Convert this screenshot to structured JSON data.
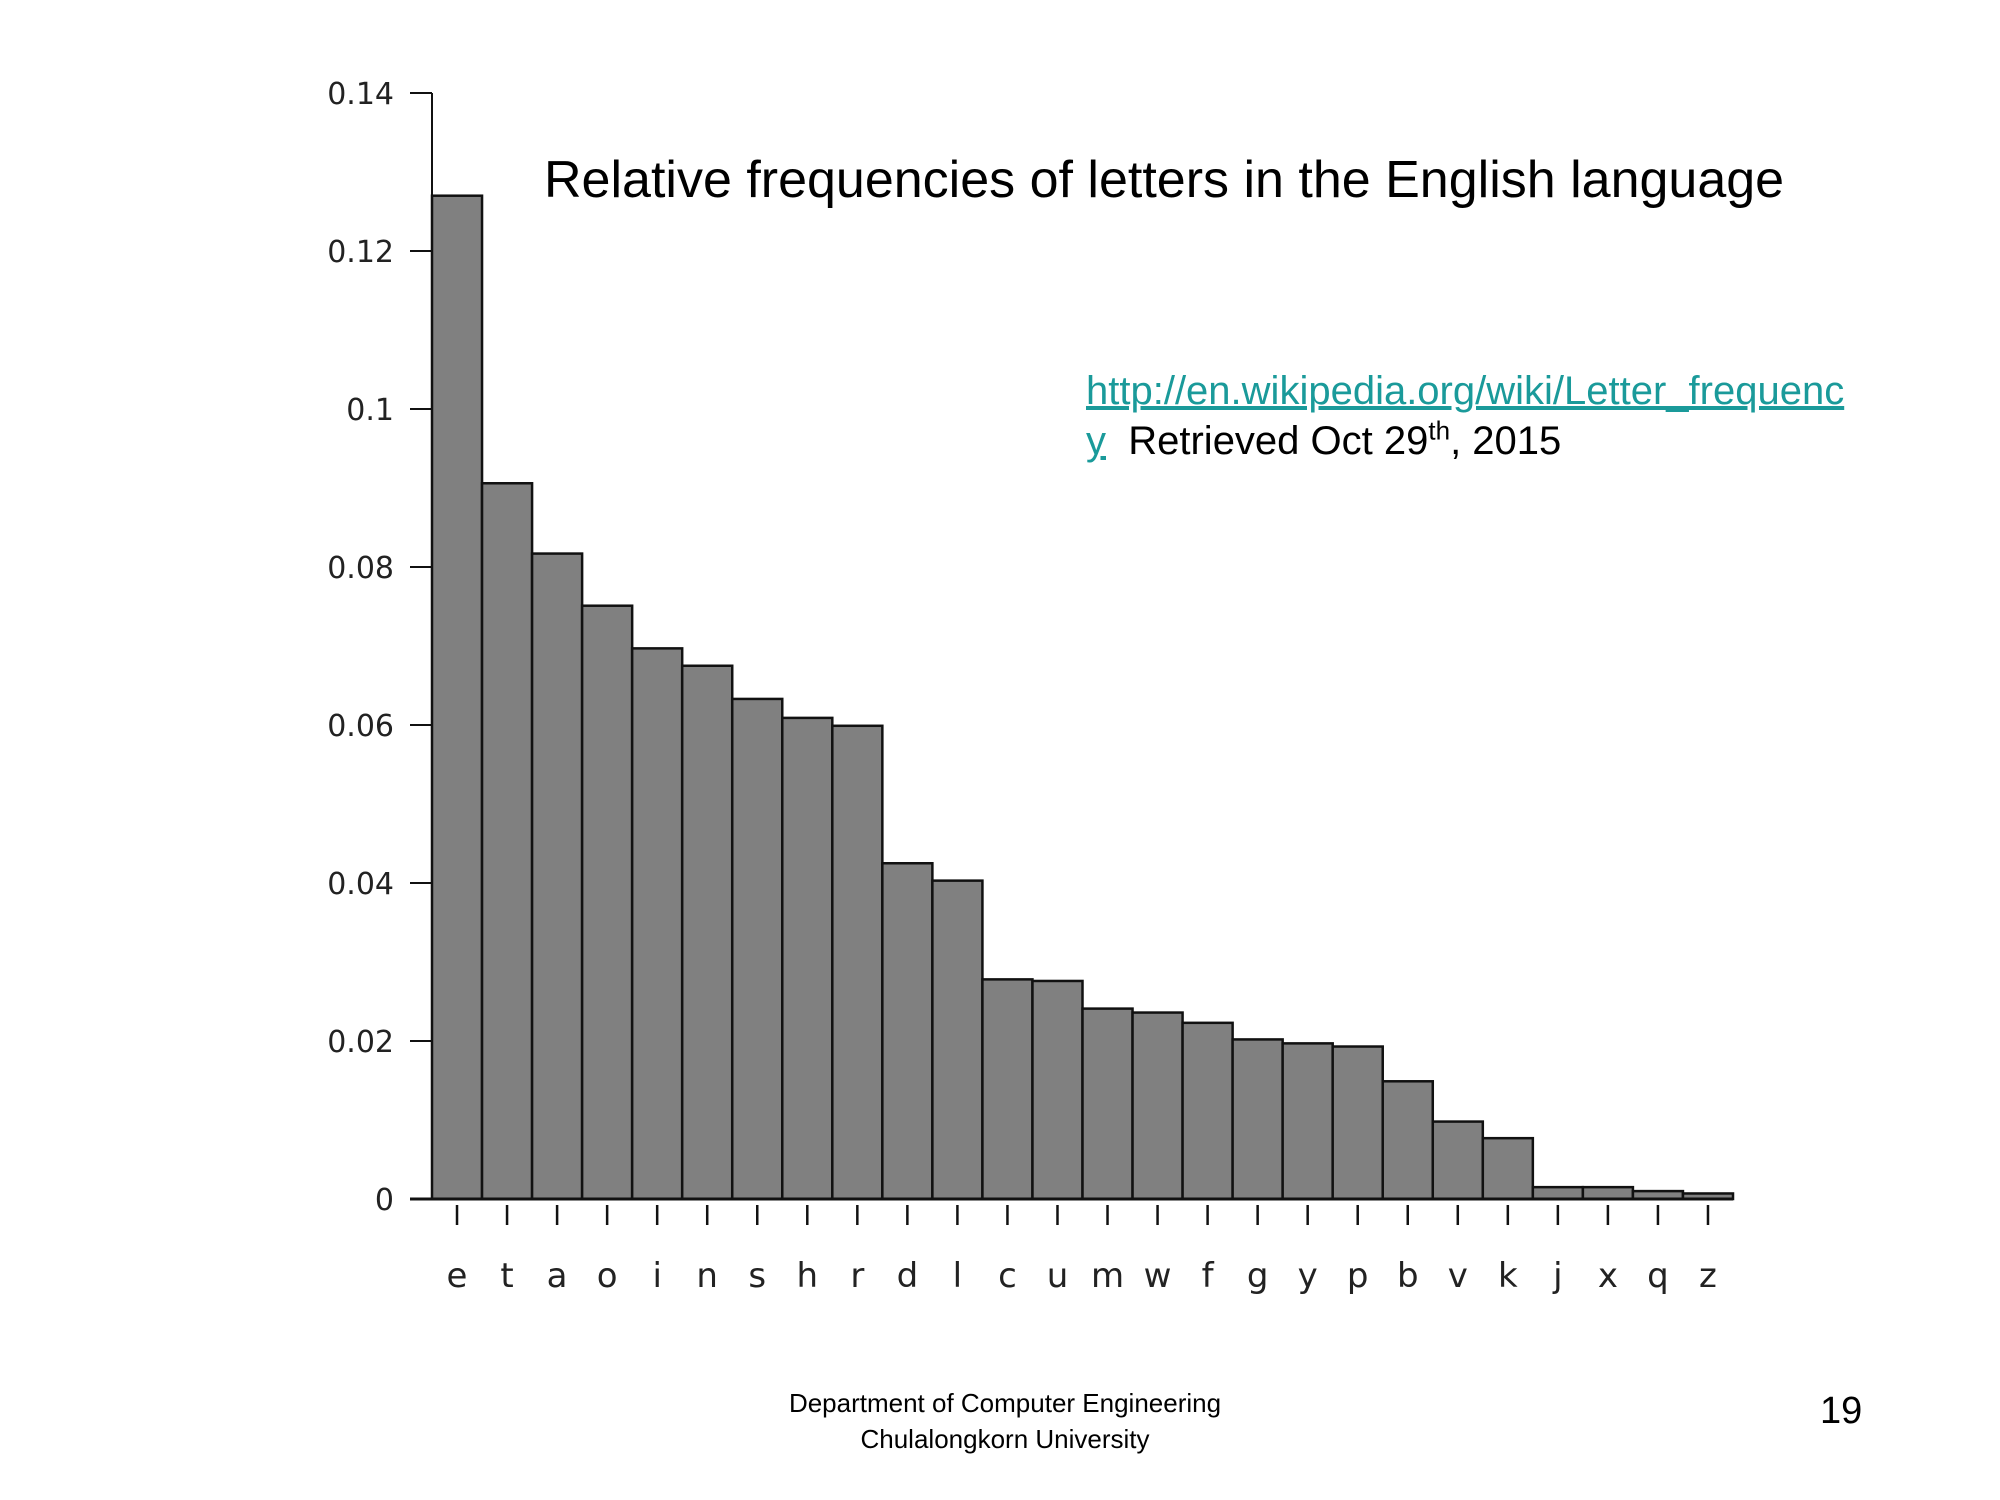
{
  "chart_data": {
    "type": "bar",
    "title": "Relative frequencies of letters in the English language",
    "xlabel": "",
    "ylabel": "",
    "ylim": [
      0,
      0.14
    ],
    "yticks": [
      "0",
      "0.02",
      "0.04",
      "0.06",
      "0.08",
      "0.1",
      "0.12",
      "0.14"
    ],
    "ytick_values": [
      0,
      0.02,
      0.04,
      0.06,
      0.08,
      0.1,
      0.12,
      0.14
    ],
    "categories": [
      "e",
      "t",
      "a",
      "o",
      "i",
      "n",
      "s",
      "h",
      "r",
      "d",
      "l",
      "c",
      "u",
      "m",
      "w",
      "f",
      "g",
      "y",
      "p",
      "b",
      "v",
      "k",
      "j",
      "x",
      "q",
      "z"
    ],
    "values": [
      0.127,
      0.0906,
      0.0817,
      0.0751,
      0.0697,
      0.0675,
      0.0633,
      0.0609,
      0.0599,
      0.0425,
      0.0403,
      0.0278,
      0.0276,
      0.0241,
      0.0236,
      0.0223,
      0.0202,
      0.0197,
      0.0193,
      0.0149,
      0.0098,
      0.0077,
      0.0015,
      0.0015,
      0.001,
      0.0007
    ],
    "grid": false,
    "bar_color": "#808080",
    "bar_edge_color": "#111111"
  },
  "source": {
    "link_text": "http://en.wikipedia.org/wiki/Letter_frequency",
    "retrieved_prefix": "Retrieved Oct 29",
    "retrieved_sup": "th",
    "retrieved_suffix": ", 2015",
    "link_color": "#1a9a9a"
  },
  "footer": {
    "line1": "Department of Computer Engineering",
    "line2": "Chulalongkorn University"
  },
  "page_number": "19"
}
